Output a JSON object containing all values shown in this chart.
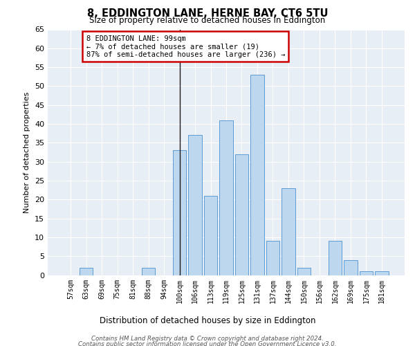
{
  "title": "8, EDDINGTON LANE, HERNE BAY, CT6 5TU",
  "subtitle": "Size of property relative to detached houses in Eddington",
  "xlabel": "Distribution of detached houses by size in Eddington",
  "ylabel": "Number of detached properties",
  "categories": [
    "57sqm",
    "63sqm",
    "69sqm",
    "75sqm",
    "81sqm",
    "88sqm",
    "94sqm",
    "100sqm",
    "106sqm",
    "113sqm",
    "119sqm",
    "125sqm",
    "131sqm",
    "137sqm",
    "144sqm",
    "150sqm",
    "156sqm",
    "162sqm",
    "169sqm",
    "175sqm",
    "181sqm"
  ],
  "values": [
    0,
    2,
    0,
    0,
    0,
    2,
    0,
    33,
    37,
    21,
    41,
    32,
    53,
    9,
    23,
    2,
    0,
    9,
    4,
    1,
    1
  ],
  "bar_color": "#bdd7ee",
  "bar_edge_color": "#5b9bd5",
  "highlight_index": 7,
  "highlight_line_color": "#1a1a1a",
  "annotation_title": "8 EDDINGTON LANE: 99sqm",
  "annotation_line1": "← 7% of detached houses are smaller (19)",
  "annotation_line2": "87% of semi-detached houses are larger (236) →",
  "annotation_box_color": "#ffffff",
  "annotation_box_edge_color": "#cc0000",
  "ylim": [
    0,
    65
  ],
  "yticks": [
    0,
    5,
    10,
    15,
    20,
    25,
    30,
    35,
    40,
    45,
    50,
    55,
    60,
    65
  ],
  "bg_color": "#e8eef5",
  "fig_color": "#ffffff",
  "grid_color": "#ffffff",
  "footer_line1": "Contains HM Land Registry data © Crown copyright and database right 2024.",
  "footer_line2": "Contains public sector information licensed under the Open Government Licence v3.0."
}
